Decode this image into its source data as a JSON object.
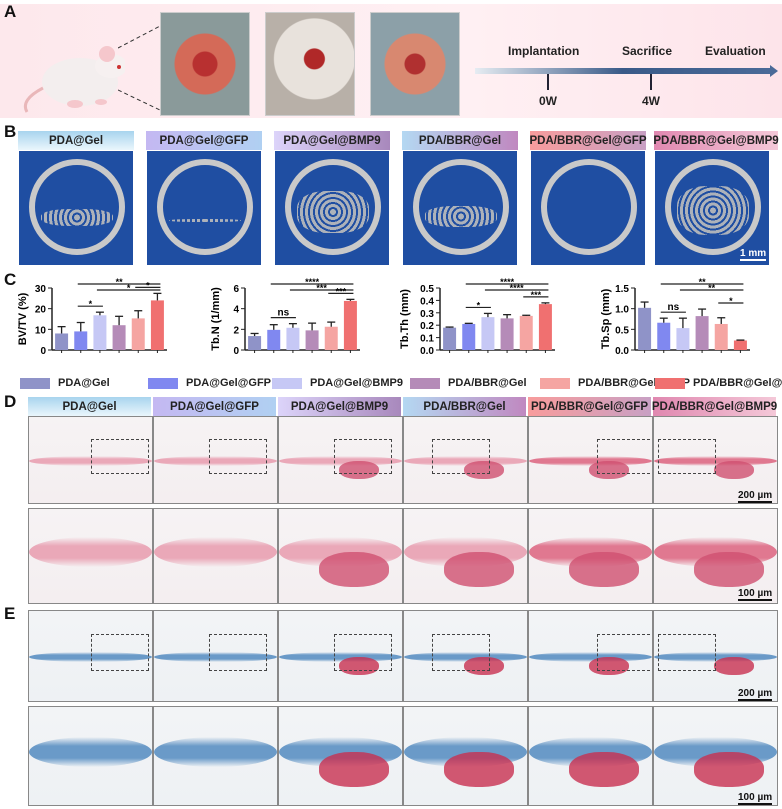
{
  "panels": {
    "a": "A",
    "b": "B",
    "c": "C",
    "d": "D",
    "e": "E"
  },
  "timeline": {
    "events": [
      "Implantation",
      "Sacrifice",
      "Evaluation"
    ],
    "ticks": [
      "0W",
      "4W"
    ]
  },
  "groups": [
    "PDA@Gel",
    "PDA@Gel@GFP",
    "PDA@Gel@BMP9",
    "PDA/BBR@Gel",
    "PDA/BBR@Gel@GFP",
    "PDA/BBR@Gel@BMP9"
  ],
  "colors": [
    "#8f93c8",
    "#8088f0",
    "#c6c8f5",
    "#b58bb8",
    "#f5a5a2",
    "#f07070"
  ],
  "scale_bars": {
    "b": "1 mm",
    "d_top": "200 µm",
    "d_bottom": "100 µm",
    "e_top": "200 µm",
    "e_bottom": "100 µm"
  },
  "chart_data": [
    {
      "type": "bar",
      "ylabel": "BV/TV (%)",
      "ylim": [
        0,
        30
      ],
      "yticks": [
        "0",
        "10",
        "20",
        "30"
      ],
      "values": [
        8,
        9,
        16.8,
        12,
        15.3,
        24
      ],
      "errors": [
        3.3,
        4.3,
        1.5,
        4.3,
        3.7,
        3.4
      ],
      "significance": [
        {
          "from": 1,
          "to": 5,
          "label": "**"
        },
        {
          "from": 2,
          "to": 5,
          "label": "*"
        },
        {
          "from": 4,
          "to": 5,
          "label": "*"
        },
        {
          "from": 1,
          "to": 2,
          "label": "*"
        }
      ]
    },
    {
      "type": "bar",
      "ylabel": "Tb.N (1/mm)",
      "ylim": [
        0,
        6
      ],
      "yticks": [
        "0",
        "2",
        "4",
        "6"
      ],
      "values": [
        1.35,
        1.95,
        2.15,
        1.9,
        2.25,
        4.75
      ],
      "errors": [
        0.25,
        0.5,
        0.4,
        0.7,
        0.45,
        0.15
      ],
      "significance": [
        {
          "from": 1,
          "to": 5,
          "label": "****"
        },
        {
          "from": 2,
          "to": 5,
          "label": "***"
        },
        {
          "from": 4,
          "to": 5,
          "label": "***"
        },
        {
          "from": 1,
          "to": 2,
          "label": "ns"
        }
      ]
    },
    {
      "type": "bar",
      "ylabel": "Tb.Th (mm)",
      "ylim": [
        0,
        0.5
      ],
      "yticks": [
        "0.0",
        "0.1",
        "0.2",
        "0.3",
        "0.4",
        "0.5"
      ],
      "values": [
        0.18,
        0.21,
        0.265,
        0.255,
        0.275,
        0.37
      ],
      "errors": [
        0.005,
        0.005,
        0.03,
        0.03,
        0.005,
        0.01
      ],
      "significance": [
        {
          "from": 1,
          "to": 5,
          "label": "****"
        },
        {
          "from": 2,
          "to": 5,
          "label": "****"
        },
        {
          "from": 4,
          "to": 5,
          "label": "***"
        },
        {
          "from": 1,
          "to": 2,
          "label": "*"
        }
      ]
    },
    {
      "type": "bar",
      "ylabel": "Tb.Sp (mm)",
      "ylim": [
        0,
        1.5
      ],
      "yticks": [
        "0.0",
        "0.5",
        "1.0",
        "1.5"
      ],
      "values": [
        1.02,
        0.66,
        0.53,
        0.82,
        0.63,
        0.23
      ],
      "errors": [
        0.14,
        0.11,
        0.24,
        0.17,
        0.15,
        0.01
      ],
      "significance": [
        {
          "from": 1,
          "to": 5,
          "label": "**"
        },
        {
          "from": 2,
          "to": 5,
          "label": "**"
        },
        {
          "from": 1,
          "to": 2,
          "label": "ns"
        },
        {
          "from": 4,
          "to": 5,
          "label": "*"
        }
      ]
    }
  ]
}
